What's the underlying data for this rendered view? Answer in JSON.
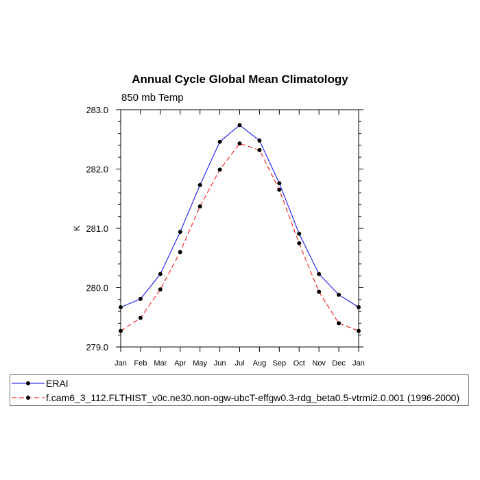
{
  "chart_data": {
    "type": "line",
    "title": "Annual Cycle Global Mean Climatology",
    "subtitle": "850 mb Temp",
    "xlabel": "",
    "ylabel": "K",
    "categories": [
      "Jan",
      "Feb",
      "Mar",
      "Apr",
      "May",
      "Jun",
      "Jul",
      "Aug",
      "Sep",
      "Oct",
      "Nov",
      "Dec",
      "Jan"
    ],
    "ylim": [
      279.0,
      283.0
    ],
    "yticks": [
      "279.0",
      "280.0",
      "281.0",
      "282.0",
      "283.0"
    ],
    "series": [
      {
        "name": "ERAI",
        "color": "#0000ff",
        "dash": "solid",
        "values": [
          279.67,
          279.81,
          280.23,
          280.94,
          281.73,
          282.46,
          282.74,
          282.48,
          281.76,
          280.91,
          280.23,
          279.88,
          279.67
        ]
      },
      {
        "name": "f.cam6_3_112.FLTHIST_v0c.ne30.non-ogw-ubcT-effgw0.3-rdg_beta0.5-vtrmi2.0.001 (1996-2000)",
        "color": "#ff0000",
        "dash": "dashed",
        "values": [
          279.27,
          279.49,
          279.97,
          280.6,
          281.37,
          281.99,
          282.43,
          282.32,
          281.65,
          280.75,
          279.93,
          279.4,
          279.27
        ]
      }
    ],
    "grid": false,
    "legend_position": "bottom"
  }
}
